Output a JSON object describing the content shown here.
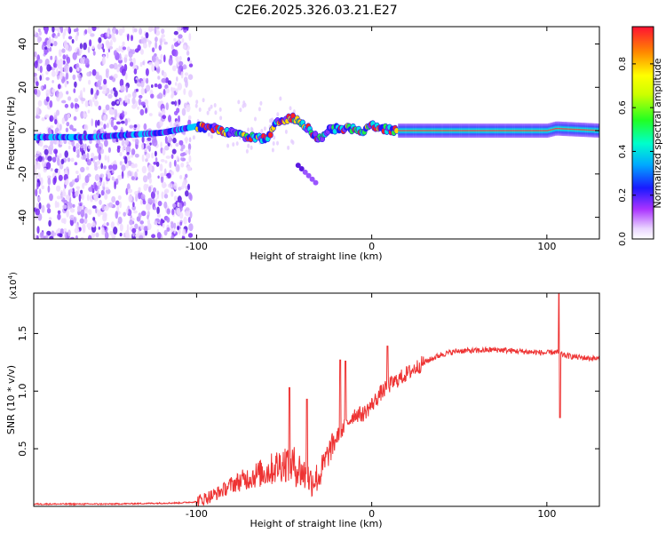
{
  "title": "C2E6.2025.326.03.21.E27",
  "chart_data": [
    {
      "type": "heatmap",
      "xlabel": "Height of straight line (km)",
      "ylabel": "Frequency (Hz)",
      "xlim": [
        -193,
        130
      ],
      "ylim": [
        -50,
        48
      ],
      "xticks": [
        -100,
        0,
        100
      ],
      "yticks": [
        -40,
        -20,
        0,
        20,
        40
      ],
      "colorbar": {
        "label": "Normalized spectral amplitude",
        "range": [
          0,
          0.97
        ],
        "ticks": [
          0.0,
          0.2,
          0.4,
          0.6,
          0.8
        ]
      },
      "ridge": {
        "x": [
          -193,
          -180,
          -160,
          -140,
          -120,
          -100,
          -90,
          -80,
          -70,
          -60,
          -55,
          -50,
          -45,
          -40,
          -35,
          -30,
          -25,
          -20,
          -10,
          -5,
          0,
          5,
          15,
          30,
          60,
          100,
          105,
          130
        ],
        "y": [
          -3,
          -3,
          -3,
          -2,
          -1,
          2,
          1,
          -1,
          -3,
          -4,
          3,
          5,
          6,
          4,
          0,
          -4,
          0,
          1,
          1,
          0,
          3,
          1,
          0,
          0,
          0,
          0,
          1,
          0
        ]
      },
      "noise_region_x": [
        -193,
        -103
      ],
      "secondary_blob": {
        "x": [
          -42,
          -32
        ],
        "y": [
          -16,
          -24
        ]
      }
    },
    {
      "type": "line",
      "xlabel": "Height of straight line (km)",
      "ylabel": "SNR (10 * v/v)",
      "scale_note": "(x10",
      "scale_exp": "4",
      "xlim": [
        -193,
        130
      ],
      "ylim": [
        0,
        1.85
      ],
      "xticks": [
        -100,
        0,
        100
      ],
      "yticks": [
        0.5,
        1.0,
        1.5
      ],
      "color": "#ee3333",
      "series": {
        "x": [
          -193,
          -150,
          -110,
          -100,
          -95,
          -90,
          -85,
          -80,
          -75,
          -70,
          -65,
          -60,
          -55,
          -50,
          -45,
          -40,
          -35,
          -30,
          -25,
          -20,
          -15,
          -10,
          -5,
          0,
          5,
          10,
          15,
          20,
          30,
          40,
          50,
          60,
          70,
          80,
          90,
          100,
          104,
          107,
          110,
          120,
          130
        ],
        "y": [
          0.02,
          0.02,
          0.03,
          0.04,
          0.07,
          0.1,
          0.14,
          0.19,
          0.22,
          0.25,
          0.28,
          0.3,
          0.34,
          0.38,
          0.36,
          0.3,
          0.22,
          0.26,
          0.45,
          0.6,
          0.7,
          0.8,
          0.8,
          0.88,
          0.98,
          1.05,
          1.1,
          1.15,
          1.25,
          1.32,
          1.35,
          1.35,
          1.36,
          1.35,
          1.34,
          1.33,
          1.34,
          1.33,
          1.31,
          1.29,
          1.28
        ]
      },
      "spikes": [
        {
          "x": -47,
          "y": 1.03
        },
        {
          "x": -37,
          "y": 0.93
        },
        {
          "x": -18,
          "y": 1.27
        },
        {
          "x": -15,
          "y": 1.26
        },
        {
          "x": 9,
          "y": 1.39
        },
        {
          "x": 107,
          "y": 1.85
        },
        {
          "x": 107.5,
          "y": 0.77
        }
      ]
    }
  ]
}
